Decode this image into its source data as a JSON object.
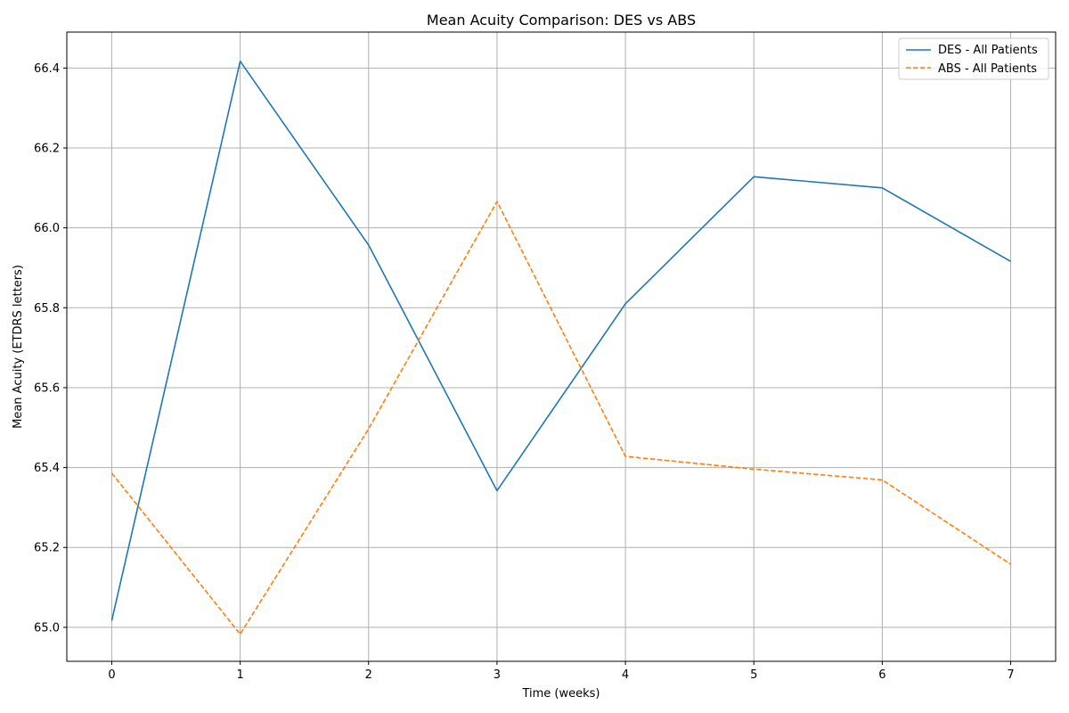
{
  "chart_data": {
    "type": "line",
    "title": "Mean Acuity Comparison: DES vs ABS",
    "xlabel": "Time (weeks)",
    "ylabel": "Mean Acuity (ETDRS letters)",
    "x": [
      0,
      1,
      2,
      3,
      4,
      5,
      6,
      7
    ],
    "xticks": [
      "0",
      "1",
      "2",
      "3",
      "4",
      "5",
      "6",
      "7"
    ],
    "yticks": [
      "65.0",
      "65.2",
      "65.4",
      "65.6",
      "65.8",
      "66.0",
      "66.2",
      "66.4"
    ],
    "xlim": [
      -0.35,
      7.35
    ],
    "ylim": [
      64.915,
      66.49
    ],
    "grid": true,
    "legend_position": "top-right",
    "series": [
      {
        "name": "DES - All Patients",
        "color": "#1f77b4",
        "linestyle": "solid",
        "values": [
          65.017,
          66.417,
          65.957,
          65.342,
          65.81,
          66.128,
          66.1,
          65.916
        ]
      },
      {
        "name": "ABS - All Patients",
        "color": "#ff7f0e",
        "linestyle": "dashed",
        "values": [
          65.386,
          64.983,
          65.497,
          66.066,
          65.428,
          65.396,
          65.369,
          65.158
        ]
      }
    ]
  }
}
